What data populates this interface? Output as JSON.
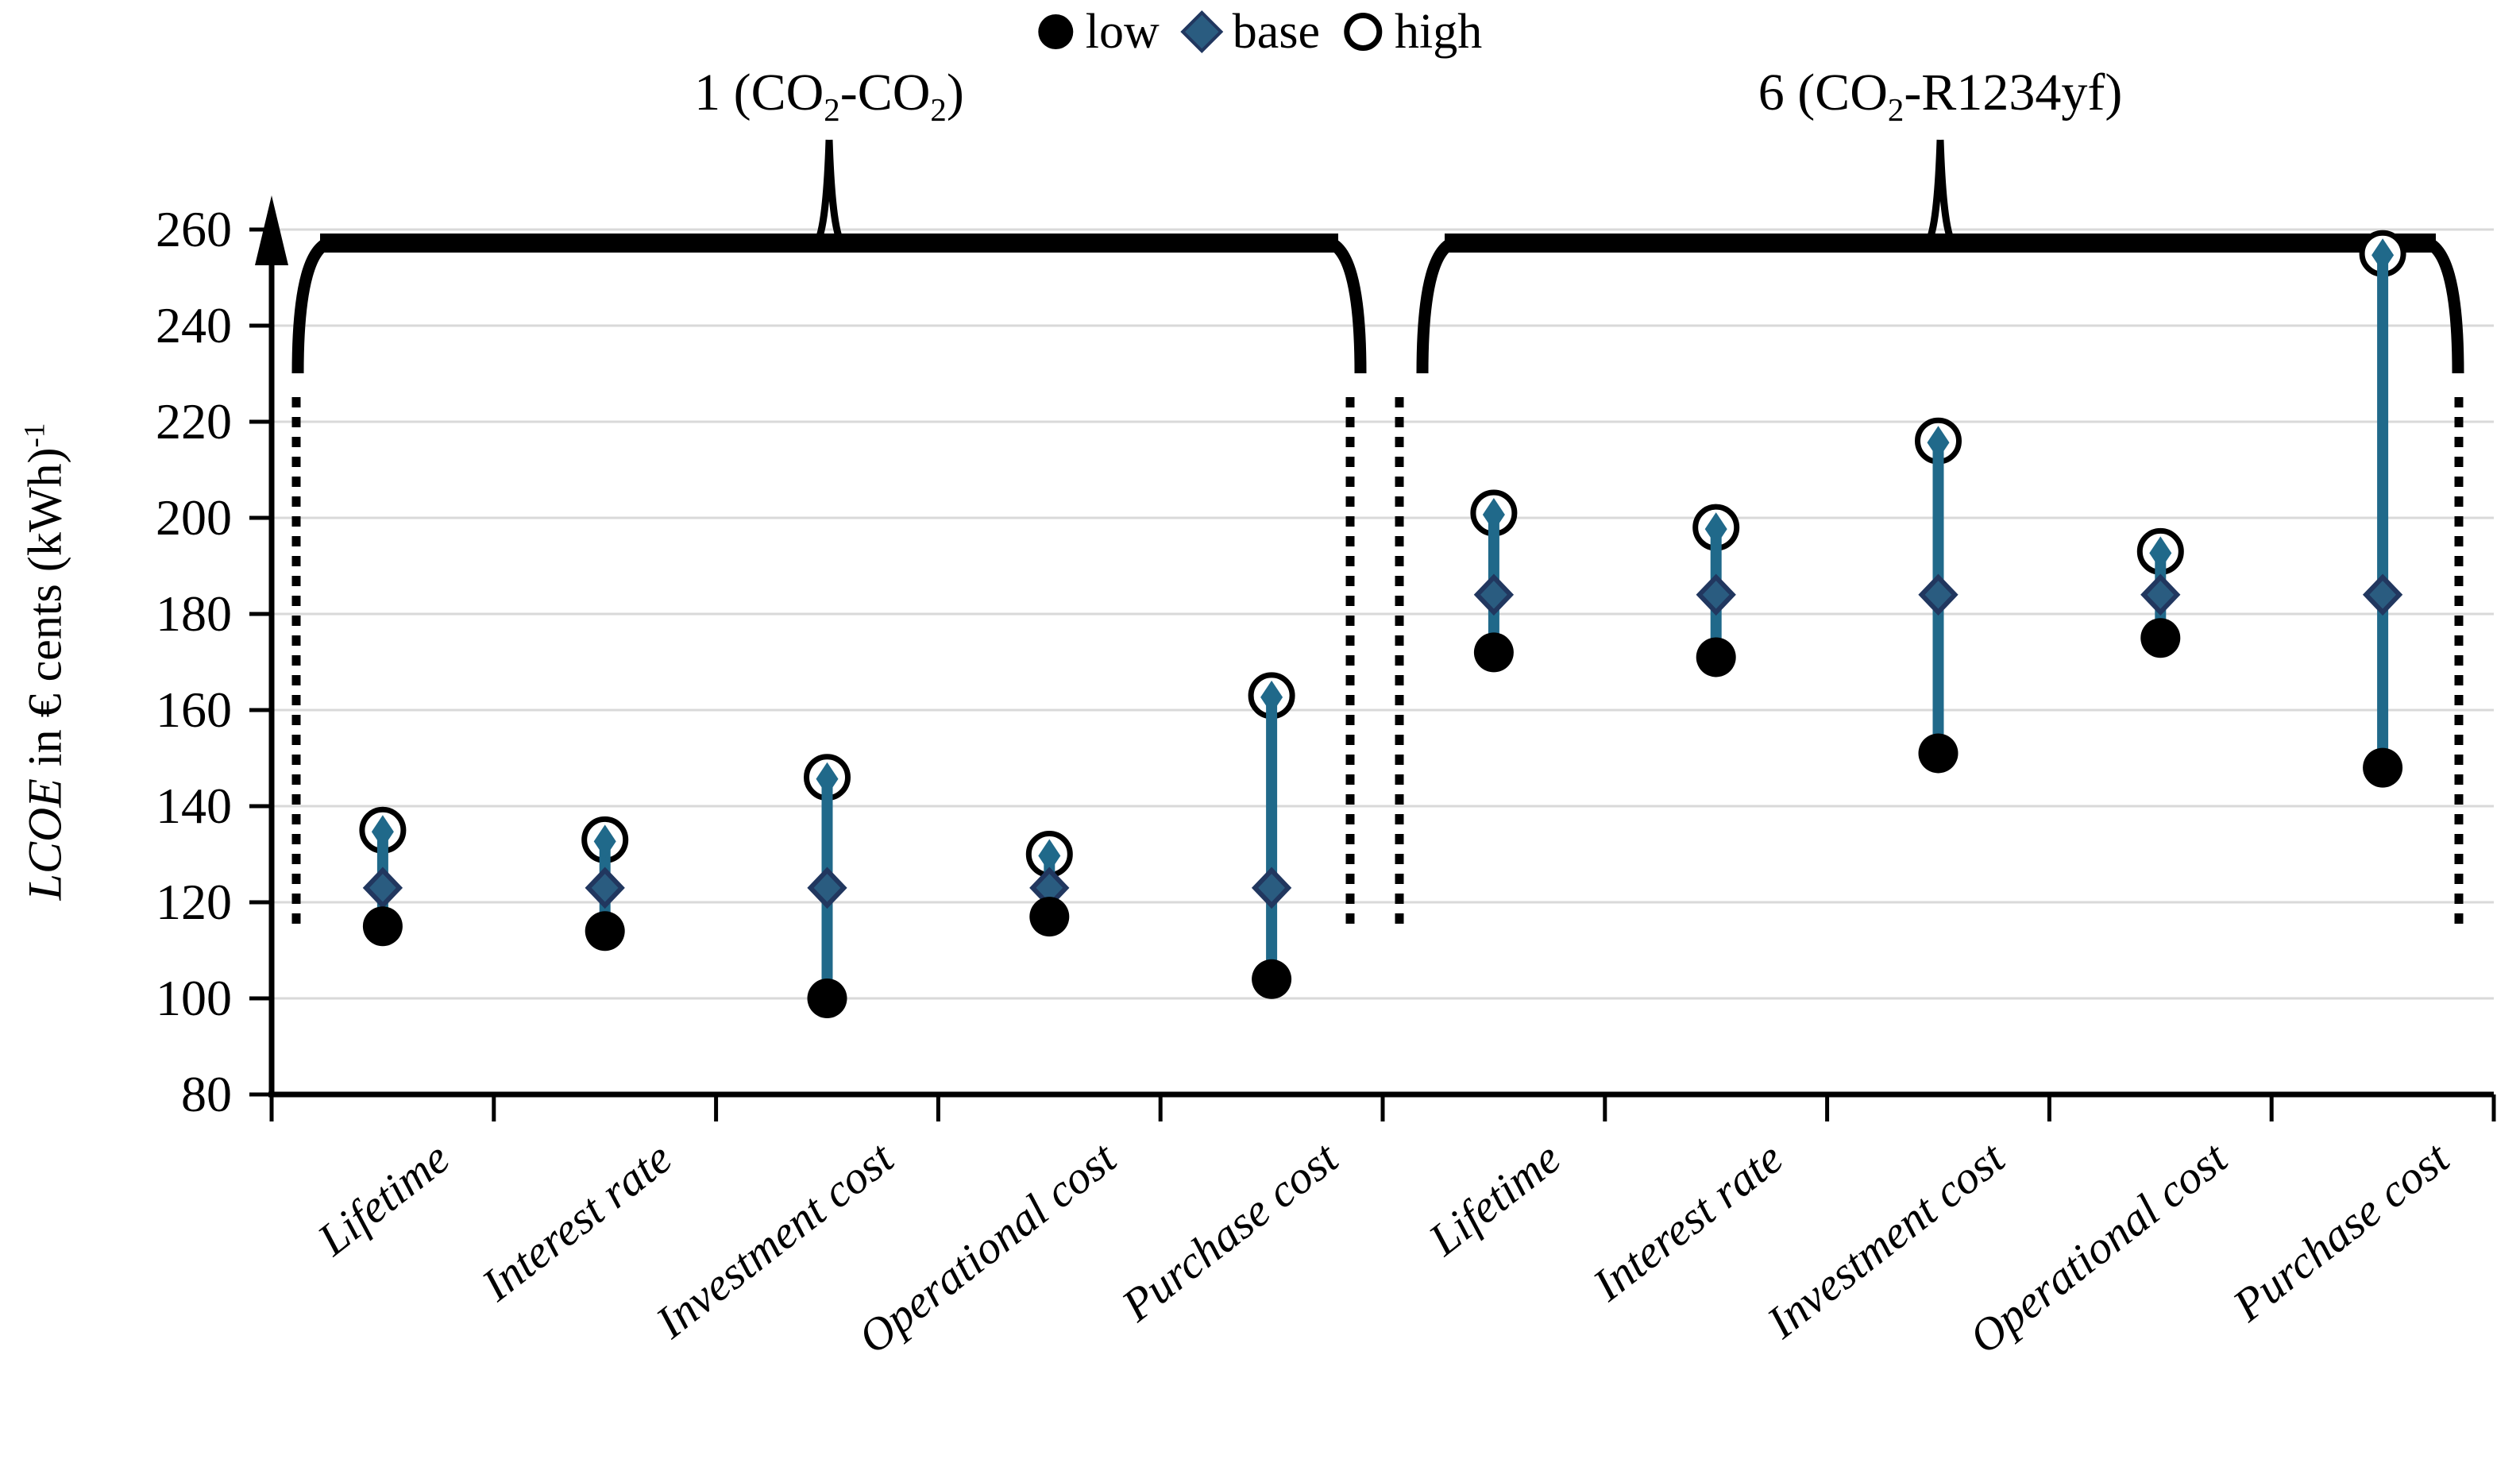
{
  "legend": {
    "items": [
      {
        "label": "low",
        "marker": "filled-circle"
      },
      {
        "label": "base",
        "marker": "diamond"
      },
      {
        "label": "high",
        "marker": "open-circle"
      }
    ]
  },
  "y_axis_title": {
    "italic": "LCOE",
    "rest": " in € cents (kWh)",
    "superscript": "-1"
  },
  "chart_data": {
    "type": "scatter",
    "subtype": "sensitivity range plot (low / base / high per parameter)",
    "title": "",
    "xlabel": "",
    "ylabel": "LCOE in € cents (kWh)^-1",
    "ylim": [
      80,
      260
    ],
    "ytick_step": 20,
    "ytick_labels": [
      "80",
      "100",
      "120",
      "140",
      "160",
      "180",
      "200",
      "220",
      "240",
      "260"
    ],
    "grid": "horizontal",
    "legend_position": "top-center",
    "legend_entries": [
      "low",
      "base",
      "high"
    ],
    "categories": [
      "Lifetime",
      "Interest rate",
      "Investment cost",
      "Operational cost",
      "Purchase cost"
    ],
    "groups": [
      {
        "label_text": "1 (CO2-CO2)",
        "label": {
          "pre": "1 (CO",
          "sub1": "2",
          "mid": "-CO",
          "sub2": "2",
          "post": ")"
        },
        "points": [
          {
            "category": "Lifetime",
            "low": 115,
            "base": 123,
            "high": 135
          },
          {
            "category": "Interest rate",
            "low": 114,
            "base": 123,
            "high": 133
          },
          {
            "category": "Investment cost",
            "low": 100,
            "base": 123,
            "high": 146
          },
          {
            "category": "Operational cost",
            "low": 117,
            "base": 123,
            "high": 130
          },
          {
            "category": "Purchase cost",
            "low": 104,
            "base": 123,
            "high": 163
          }
        ]
      },
      {
        "label_text": "6 (CO2-R1234yf)",
        "label": {
          "pre": "6 (CO",
          "sub1": "2",
          "mid": "-R1234yf",
          "sub2": "",
          "post": ")"
        },
        "points": [
          {
            "category": "Lifetime",
            "low": 172,
            "base": 184,
            "high": 201
          },
          {
            "category": "Interest rate",
            "low": 171,
            "base": 184,
            "high": 198
          },
          {
            "category": "Investment cost",
            "low": 151,
            "base": 184,
            "high": 216
          },
          {
            "category": "Operational cost",
            "low": 175,
            "base": 184,
            "high": 193
          },
          {
            "category": "Purchase cost",
            "low": 148,
            "base": 184,
            "high": 255
          }
        ]
      }
    ],
    "colors": {
      "low_marker": "#000000",
      "base_marker_fill": "#2A5C80",
      "base_marker_stroke": "#21375F",
      "high_marker_stroke": "#000000",
      "range_line": "#20698A",
      "gridline": "#D9D9D9",
      "axis": "#000000"
    }
  }
}
